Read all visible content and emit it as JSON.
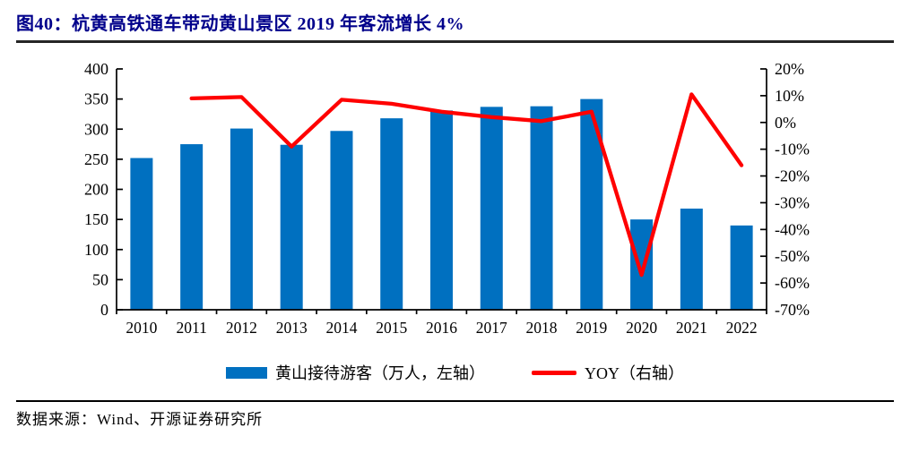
{
  "page": {
    "title": "图40：杭黄高铁通车带动黄山景区 2019 年客流增长 4%",
    "source": "数据来源：Wind、开源证券研究所"
  },
  "colors": {
    "title": "#00008B",
    "bar": "#0070C0",
    "line": "#FF0000",
    "axis": "#000000",
    "rule": "#262626"
  },
  "chart_data": {
    "type": "bar",
    "subtype": "bar+line combo, dual axis",
    "title": "杭黄高铁通车带动黄山景区 2019 年客流增长 4%",
    "categories": [
      "2010",
      "2011",
      "2012",
      "2013",
      "2014",
      "2015",
      "2016",
      "2017",
      "2018",
      "2019",
      "2020",
      "2021",
      "2022"
    ],
    "series": [
      {
        "name": "黄山接待游客（万人，左轴）",
        "type": "bar",
        "axis": "left",
        "color": "#0070C0",
        "values": [
          252,
          275,
          301,
          274,
          297,
          318,
          331,
          337,
          338,
          350,
          150,
          168,
          140
        ]
      },
      {
        "name": "YOY（右轴）",
        "type": "line",
        "axis": "right",
        "color": "#FF0000",
        "unit": "%",
        "values": [
          null,
          9.0,
          9.5,
          -9.0,
          8.5,
          7.0,
          4.0,
          2.0,
          0.5,
          4.0,
          -57.0,
          10.5,
          -16.0
        ]
      }
    ],
    "left_axis": {
      "min": 0,
      "max": 400,
      "tick_values": [
        400,
        350,
        300,
        250,
        200,
        150,
        100,
        50,
        0
      ],
      "tick_labels": [
        "400",
        "350",
        "300",
        "250",
        "200",
        "150",
        "100",
        "50",
        "0"
      ]
    },
    "right_axis": {
      "min": -70,
      "max": 20,
      "tick_values": [
        20,
        10,
        0,
        -10,
        -20,
        -30,
        -40,
        -50,
        -60,
        -70
      ],
      "tick_labels": [
        "20%",
        "10%",
        "0%",
        "-10%",
        "-20%",
        "-30%",
        "-40%",
        "-50%",
        "-60%",
        "-70%"
      ]
    },
    "grid": false,
    "legend_position": "bottom"
  },
  "legend": {
    "bar_label": "黄山接待游客（万人，左轴）",
    "line_label": "YOY（右轴）"
  }
}
